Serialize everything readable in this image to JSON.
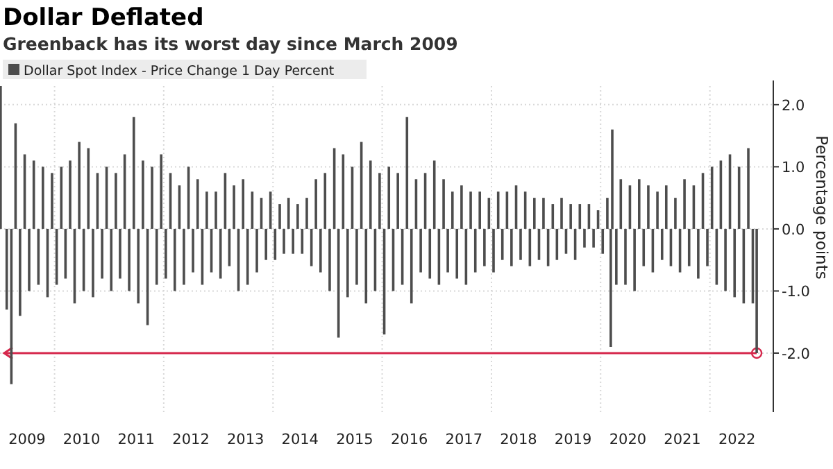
{
  "chart_data": {
    "type": "bar",
    "title": "Dollar Deflated",
    "subtitle": "Greenback has its worst day since March 2009",
    "ylabel": "Percentage points",
    "series": [
      {
        "name": "Dollar Spot Index - Price Change 1 Day Percent",
        "color": "#4d4d4d",
        "x": [
          "2009-01-05",
          "2009-02",
          "2009-03-18",
          "2009-04",
          "2009-05",
          "2009-06",
          "2009-07",
          "2009-08",
          "2009-09",
          "2009-10",
          "2009-11",
          "2009-12",
          "2010-01",
          "2010-02",
          "2010-03",
          "2010-04",
          "2010-05",
          "2010-06",
          "2010-07",
          "2010-08",
          "2010-09",
          "2010-10",
          "2010-11",
          "2010-12",
          "2011-01",
          "2011-02",
          "2011-03",
          "2011-04",
          "2011-05",
          "2011-06",
          "2011-07",
          "2011-08",
          "2011-09",
          "2011-10",
          "2011-11",
          "2011-12",
          "2012-01",
          "2012-02",
          "2012-03",
          "2012-04",
          "2012-05",
          "2012-06",
          "2012-07",
          "2012-08",
          "2012-09",
          "2012-10",
          "2012-11",
          "2012-12",
          "2013-01",
          "2013-02",
          "2013-03",
          "2013-04",
          "2013-05",
          "2013-06",
          "2013-07",
          "2013-08",
          "2013-09",
          "2013-10",
          "2013-11",
          "2013-12",
          "2014-01",
          "2014-02",
          "2014-03",
          "2014-04",
          "2014-05",
          "2014-06",
          "2014-07",
          "2014-08",
          "2014-09",
          "2014-10",
          "2014-11",
          "2014-12",
          "2015-01",
          "2015-02",
          "2015-03",
          "2015-04",
          "2015-05",
          "2015-06",
          "2015-07",
          "2015-08",
          "2015-09",
          "2015-10",
          "2015-11",
          "2015-12",
          "2016-01",
          "2016-02",
          "2016-03",
          "2016-04",
          "2016-05",
          "2016-06",
          "2016-07",
          "2016-08",
          "2016-09",
          "2016-10",
          "2016-11",
          "2016-12",
          "2017-01",
          "2017-02",
          "2017-03",
          "2017-04",
          "2017-05",
          "2017-06",
          "2017-07",
          "2017-08",
          "2017-09",
          "2017-10",
          "2017-11",
          "2017-12",
          "2018-01",
          "2018-02",
          "2018-03",
          "2018-04",
          "2018-05",
          "2018-06",
          "2018-07",
          "2018-08",
          "2018-09",
          "2018-10",
          "2018-11",
          "2018-12",
          "2019-01",
          "2019-02",
          "2019-03",
          "2019-04",
          "2019-05",
          "2019-06",
          "2019-07",
          "2019-08",
          "2019-09",
          "2019-10",
          "2019-11",
          "2019-12",
          "2020-01",
          "2020-02",
          "2020-03-09",
          "2020-03-19",
          "2020-04",
          "2020-05",
          "2020-06",
          "2020-07",
          "2020-08",
          "2020-09",
          "2020-10",
          "2020-11",
          "2020-12",
          "2021-01",
          "2021-02",
          "2021-03",
          "2021-04",
          "2021-05",
          "2021-06",
          "2021-07",
          "2021-08",
          "2021-09",
          "2021-10",
          "2021-11",
          "2021-12",
          "2022-01",
          "2022-02",
          "2022-03",
          "2022-04",
          "2022-05",
          "2022-06",
          "2022-07",
          "2022-08",
          "2022-09",
          "2022-10",
          "2022-11-10"
        ],
        "values": [
          2.3,
          -1.3,
          -2.5,
          1.7,
          -1.4,
          1.2,
          -1.0,
          1.1,
          -0.9,
          1.0,
          -1.1,
          0.9,
          -0.9,
          1.0,
          -0.8,
          1.1,
          -1.2,
          1.4,
          -1.0,
          1.3,
          -1.1,
          0.9,
          -0.8,
          1.0,
          -1.0,
          0.9,
          -0.8,
          1.2,
          -1.0,
          1.8,
          -1.2,
          1.1,
          -1.55,
          1.0,
          -0.9,
          1.2,
          -0.8,
          0.9,
          -1.0,
          0.7,
          -0.9,
          1.0,
          -0.7,
          0.8,
          -0.9,
          0.6,
          -0.7,
          0.6,
          -0.8,
          0.9,
          -0.6,
          0.7,
          -1.0,
          0.8,
          -0.9,
          0.6,
          -0.7,
          0.5,
          -0.5,
          0.6,
          -0.5,
          0.4,
          -0.4,
          0.5,
          -0.4,
          0.4,
          -0.4,
          0.5,
          -0.6,
          0.8,
          -0.7,
          0.9,
          -1.0,
          1.3,
          -1.75,
          1.2,
          -1.1,
          1.0,
          -0.9,
          1.4,
          -1.2,
          1.1,
          -1.0,
          0.9,
          -1.7,
          1.0,
          -1.0,
          0.9,
          -0.9,
          1.8,
          -1.2,
          0.8,
          -0.7,
          0.9,
          -0.8,
          1.1,
          -0.9,
          0.8,
          -0.7,
          0.6,
          -0.8,
          0.7,
          -0.9,
          0.6,
          -0.7,
          0.6,
          -0.6,
          0.5,
          -0.7,
          0.6,
          -0.5,
          0.6,
          -0.6,
          0.7,
          -0.5,
          0.6,
          -0.6,
          0.5,
          -0.5,
          0.5,
          -0.6,
          0.4,
          -0.5,
          0.5,
          -0.4,
          0.4,
          -0.5,
          0.4,
          -0.3,
          0.4,
          -0.3,
          0.3,
          -0.4,
          0.5,
          -1.9,
          1.6,
          -0.9,
          0.8,
          -0.9,
          0.7,
          -1.0,
          0.8,
          -0.6,
          0.7,
          -0.7,
          0.6,
          -0.5,
          0.7,
          -0.6,
          0.5,
          -0.7,
          0.8,
          -0.6,
          0.7,
          -0.8,
          0.9,
          -0.6,
          1.0,
          -0.9,
          1.1,
          -1.0,
          1.2,
          -1.1,
          1.0,
          -1.2,
          1.3,
          -1.2,
          -2.0
        ]
      }
    ],
    "xlim": [
      "2009-01-01",
      "2023-03-01"
    ],
    "xticks": [
      {
        "value": "2009-07-01",
        "label": "2009"
      },
      {
        "value": "2010-01-01",
        "label": null
      },
      {
        "value": "2010-07-01",
        "label": "2010"
      },
      {
        "value": "2011-07-01",
        "label": "2011"
      },
      {
        "value": "2012-01-01",
        "label": null
      },
      {
        "value": "2012-07-01",
        "label": "2012"
      },
      {
        "value": "2013-07-01",
        "label": "2013"
      },
      {
        "value": "2014-01-01",
        "label": null
      },
      {
        "value": "2014-07-01",
        "label": "2014"
      },
      {
        "value": "2015-07-01",
        "label": "2015"
      },
      {
        "value": "2016-01-01",
        "label": null
      },
      {
        "value": "2016-07-01",
        "label": "2016"
      },
      {
        "value": "2017-07-01",
        "label": "2017"
      },
      {
        "value": "2018-01-01",
        "label": null
      },
      {
        "value": "2018-07-01",
        "label": "2018"
      },
      {
        "value": "2019-07-01",
        "label": "2019"
      },
      {
        "value": "2020-01-01",
        "label": null
      },
      {
        "value": "2020-07-01",
        "label": "2020"
      },
      {
        "value": "2021-07-01",
        "label": "2021"
      },
      {
        "value": "2022-01-01",
        "label": null
      },
      {
        "value": "2022-07-01",
        "label": "2022"
      }
    ],
    "ylim": [
      -2.95,
      2.3
    ],
    "yticks": [
      {
        "value": 2,
        "label": "2.0"
      },
      {
        "value": 1,
        "label": "1.0"
      },
      {
        "value": 0,
        "label": "0.0"
      },
      {
        "value": -1,
        "label": "-1.0"
      },
      {
        "value": -2,
        "label": "-2.0"
      }
    ],
    "ref_lines": [
      {
        "axis": "y",
        "value": -2.0,
        "color": "#d6284c"
      }
    ],
    "grid": true,
    "legend": "top left"
  }
}
